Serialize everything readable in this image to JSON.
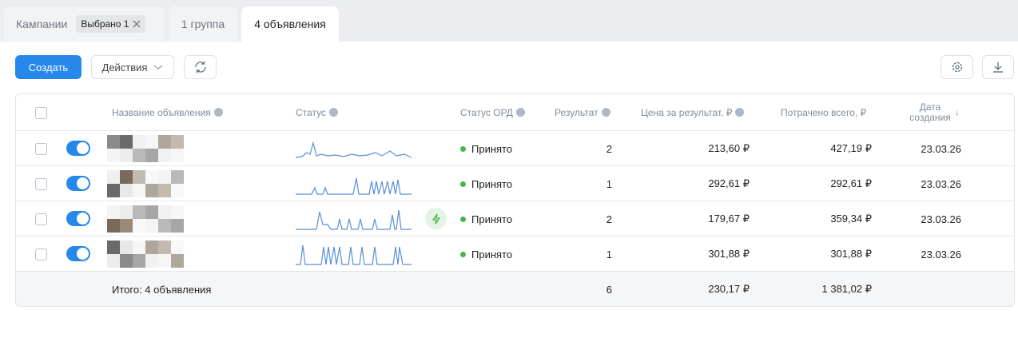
{
  "tabs": {
    "campaigns": "Кампании",
    "selected": "Выбрано 1",
    "groups": "1 группа",
    "ads": "4 объявления"
  },
  "toolbar": {
    "create": "Создать",
    "actions": "Действия"
  },
  "table": {
    "columns": {
      "name": "Название объявления",
      "status": "Статус",
      "ord": "Статус ОРД",
      "result": "Результат",
      "price": "Цена за результат, ₽",
      "spent": "Потрачено всего, ₽",
      "date": "Дата создания"
    },
    "rows": [
      [
        "Принято",
        "2",
        "213,60 ₽",
        "427,19 ₽",
        "23.03.26"
      ],
      [
        "Принято",
        "1",
        "292,61 ₽",
        "292,61 ₽",
        "23.03.26"
      ],
      [
        "Принято",
        "2",
        "179,67 ₽",
        "359,34 ₽",
        "23.03.26"
      ],
      [
        "Принято",
        "1",
        "301,88 ₽",
        "301,88 ₽",
        "23.03.26"
      ]
    ],
    "total": {
      "label": "Итого: 4 объявления",
      "result": "6",
      "price": "230,17 ₽",
      "spent": "1 381,02 ₽"
    }
  }
}
